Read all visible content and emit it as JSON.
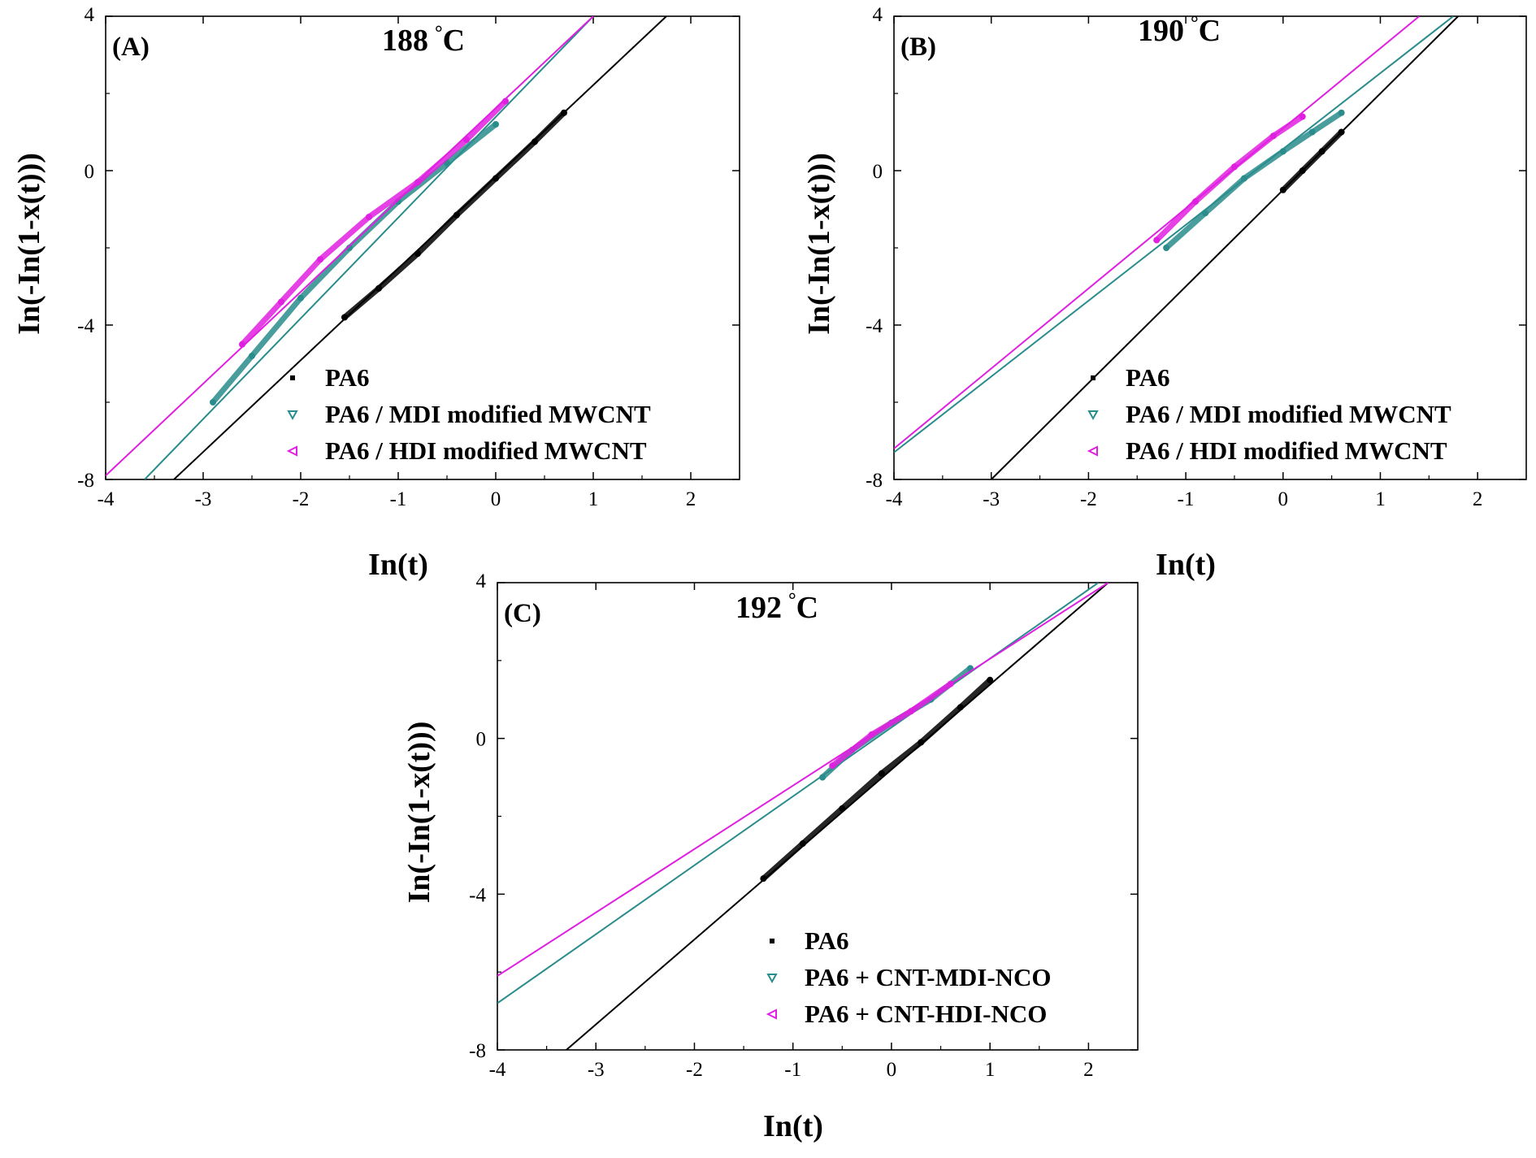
{
  "chart_data": [
    {
      "type": "line",
      "panel_label": "(A)",
      "title": "188 °C",
      "title_value": "188",
      "title_unit": "C",
      "xlabel": "In(t)",
      "ylabel": "In(-In(1-x(t)))",
      "xlim": [
        -4,
        2.5
      ],
      "ylim": [
        -8,
        4
      ],
      "xticks": [
        "-4",
        "-3",
        "-2",
        "-1",
        "0",
        "1",
        "2"
      ],
      "yticks": [
        "-8",
        "-4",
        "0",
        "4"
      ],
      "legend_position": "bottom-right",
      "series": [
        {
          "name": "PA6",
          "color": "#000000",
          "marker": "square",
          "fit": [
            [
              -3.3,
              -8
            ],
            [
              1.75,
              4
            ]
          ],
          "points": [
            [
              -1.55,
              -3.8
            ],
            [
              -1.2,
              -3.05
            ],
            [
              -0.8,
              -2.15
            ],
            [
              -0.4,
              -1.15
            ],
            [
              0.0,
              -0.2
            ],
            [
              0.4,
              0.75
            ],
            [
              0.7,
              1.5
            ]
          ]
        },
        {
          "name": "PA6 / MDI modified MWCNT",
          "color": "#2a8c8c",
          "marker": "triangle-down",
          "fit": [
            [
              -3.6,
              -8
            ],
            [
              1.0,
              4
            ]
          ],
          "points": [
            [
              -2.9,
              -6.0
            ],
            [
              -2.5,
              -4.8
            ],
            [
              -2.0,
              -3.3
            ],
            [
              -1.5,
              -2.0
            ],
            [
              -1.0,
              -0.8
            ],
            [
              -0.5,
              0.2
            ],
            [
              0.0,
              1.2
            ]
          ]
        },
        {
          "name": "PA6 / HDI modified MWCNT",
          "color": "#e020e0",
          "marker": "triangle-left",
          "fit": [
            [
              -4.0,
              -7.9
            ],
            [
              1.0,
              4
            ]
          ],
          "points": [
            [
              -2.6,
              -4.5
            ],
            [
              -2.2,
              -3.4
            ],
            [
              -1.8,
              -2.3
            ],
            [
              -1.3,
              -1.2
            ],
            [
              -0.8,
              -0.3
            ],
            [
              -0.3,
              0.8
            ],
            [
              0.1,
              1.8
            ]
          ]
        }
      ]
    },
    {
      "type": "line",
      "panel_label": "(B)",
      "title": "190 °C",
      "title_value": "190",
      "title_unit": "C",
      "xlabel": "In(t)",
      "ylabel": "In(-In(1-x(t)))",
      "xlim": [
        -4,
        2.5
      ],
      "ylim": [
        -8,
        4
      ],
      "xticks": [
        "-4",
        "-3",
        "-2",
        "-1",
        "0",
        "1",
        "2"
      ],
      "yticks": [
        "-8",
        "-4",
        "0",
        "4"
      ],
      "legend_position": "bottom-right",
      "series": [
        {
          "name": "PA6",
          "color": "#000000",
          "marker": "square",
          "fit": [
            [
              -3.0,
              -8
            ],
            [
              1.8,
              4
            ]
          ],
          "points": [
            [
              0.0,
              -0.5
            ],
            [
              0.2,
              0.0
            ],
            [
              0.4,
              0.5
            ],
            [
              0.6,
              1.0
            ]
          ]
        },
        {
          "name": "PA6 / MDI modified MWCNT",
          "color": "#2a8c8c",
          "marker": "triangle-down",
          "fit": [
            [
              -4.0,
              -7.3
            ],
            [
              1.75,
              4
            ]
          ],
          "points": [
            [
              -1.2,
              -2.0
            ],
            [
              -0.8,
              -1.1
            ],
            [
              -0.4,
              -0.2
            ],
            [
              0.0,
              0.5
            ],
            [
              0.3,
              1.0
            ],
            [
              0.6,
              1.5
            ]
          ]
        },
        {
          "name": "PA6 / HDI modified MWCNT",
          "color": "#e020e0",
          "marker": "triangle-left",
          "fit": [
            [
              -4.0,
              -7.2
            ],
            [
              1.4,
              4
            ]
          ],
          "points": [
            [
              -1.3,
              -1.8
            ],
            [
              -0.9,
              -0.8
            ],
            [
              -0.5,
              0.1
            ],
            [
              -0.1,
              0.9
            ],
            [
              0.2,
              1.4
            ]
          ]
        }
      ]
    },
    {
      "type": "line",
      "panel_label": "(C)",
      "title": "192 °C",
      "title_value": "192",
      "title_unit": "C",
      "xlabel": "In(t)",
      "ylabel": "In(-In(1-x(t)))",
      "xlim": [
        -4,
        2.5
      ],
      "ylim": [
        -8,
        4
      ],
      "xticks": [
        "-4",
        "-3",
        "-2",
        "-1",
        "0",
        "1",
        "2"
      ],
      "yticks": [
        "-8",
        "-4",
        "0",
        "4"
      ],
      "legend_position": "bottom-right",
      "series": [
        {
          "name": "PA6",
          "color": "#000000",
          "marker": "square",
          "fit": [
            [
              -3.3,
              -8
            ],
            [
              2.2,
              4
            ]
          ],
          "points": [
            [
              -1.3,
              -3.6
            ],
            [
              -0.9,
              -2.7
            ],
            [
              -0.5,
              -1.8
            ],
            [
              -0.1,
              -0.9
            ],
            [
              0.3,
              -0.1
            ],
            [
              0.7,
              0.8
            ],
            [
              1.0,
              1.5
            ]
          ]
        },
        {
          "name": "PA6 + CNT-MDI-NCO",
          "color": "#2a8c8c",
          "marker": "triangle-down",
          "fit": [
            [
              -4.0,
              -6.8
            ],
            [
              2.1,
              4
            ]
          ],
          "points": [
            [
              -0.7,
              -1.0
            ],
            [
              -0.4,
              -0.3
            ],
            [
              0.0,
              0.4
            ],
            [
              0.4,
              1.0
            ],
            [
              0.8,
              1.8
            ]
          ]
        },
        {
          "name": "PA6 + CNT-HDI-NCO",
          "color": "#e020e0",
          "marker": "triangle-left",
          "fit": [
            [
              -4.0,
              -6.1
            ],
            [
              2.2,
              4
            ]
          ],
          "points": [
            [
              -0.6,
              -0.7
            ],
            [
              -0.2,
              0.1
            ],
            [
              0.2,
              0.7
            ],
            [
              0.6,
              1.4
            ]
          ]
        }
      ]
    }
  ]
}
